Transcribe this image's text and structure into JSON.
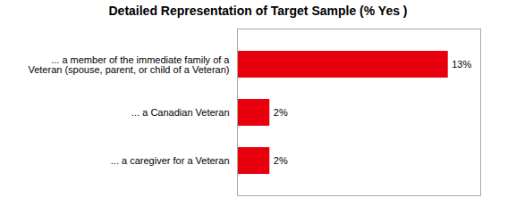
{
  "chart_data": {
    "type": "bar",
    "orientation": "horizontal",
    "title": "Detailed Representation of Target Sample (% Yes )",
    "categories": [
      "... a caregiver for a Veteran",
      "... a Canadian Veteran",
      "... a member of the immediate family of a\nVeteran (spouse, parent, or child of a Veteran)"
    ],
    "values": [
      2,
      2,
      13
    ],
    "value_labels": [
      "2%",
      "2%",
      "13%"
    ],
    "data_labels": true,
    "color": "#e8000e",
    "xlim": [
      0,
      15
    ],
    "tick_labels": "y",
    "grid": false
  }
}
